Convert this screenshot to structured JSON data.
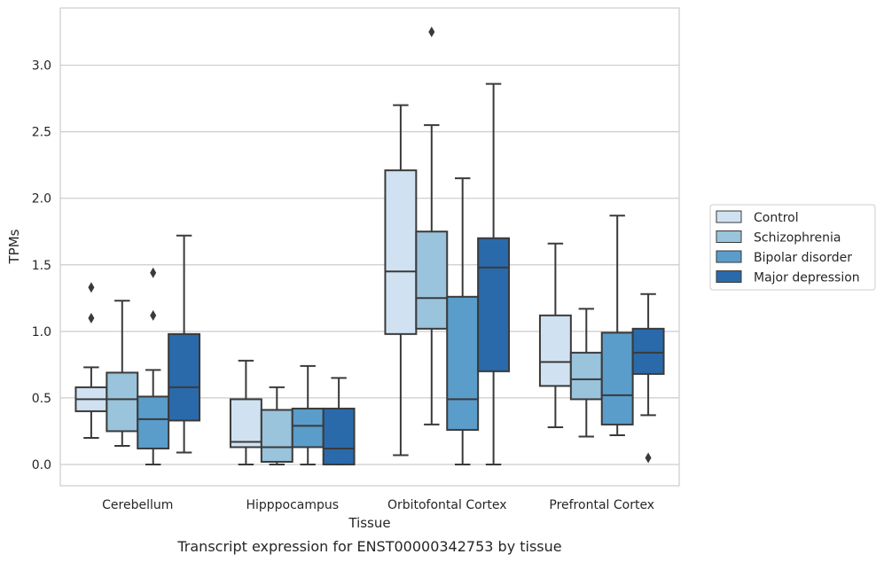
{
  "caption": "Transcript expression for ENST00000342753 by tissue",
  "chart_data": {
    "type": "box",
    "xlabel": "Tissue",
    "ylabel": "TPMs",
    "ylim": [
      -0.16,
      3.43
    ],
    "yticks": [
      0.0,
      0.5,
      1.0,
      1.5,
      2.0,
      2.5,
      3.0
    ],
    "grid": "horizontal",
    "legend_position": "right",
    "categories": [
      "Cerebellum",
      "Hipppocampus",
      "Orbitofontal Cortex",
      "Prefrontal Cortex"
    ],
    "series": [
      {
        "name": "Control",
        "color": "#d0e2f2",
        "boxes": [
          {
            "whislo": 0.2,
            "q1": 0.4,
            "med": 0.49,
            "q3": 0.58,
            "whishi": 0.73,
            "fliers": [
              1.1,
              1.33
            ]
          },
          {
            "whislo": 0.0,
            "q1": 0.13,
            "med": 0.17,
            "q3": 0.49,
            "whishi": 0.78,
            "fliers": []
          },
          {
            "whislo": 0.07,
            "q1": 0.98,
            "med": 1.45,
            "q3": 2.21,
            "whishi": 2.7,
            "fliers": []
          },
          {
            "whislo": 0.28,
            "q1": 0.59,
            "med": 0.77,
            "q3": 1.12,
            "whishi": 1.66,
            "fliers": []
          }
        ]
      },
      {
        "name": "Schizophrenia",
        "color": "#9ac3dc",
        "boxes": [
          {
            "whislo": 0.14,
            "q1": 0.25,
            "med": 0.49,
            "q3": 0.69,
            "whishi": 1.23,
            "fliers": []
          },
          {
            "whislo": 0.0,
            "q1": 0.02,
            "med": 0.13,
            "q3": 0.41,
            "whishi": 0.58,
            "fliers": []
          },
          {
            "whislo": 0.3,
            "q1": 1.02,
            "med": 1.25,
            "q3": 1.75,
            "whishi": 2.55,
            "fliers": [
              3.25
            ]
          },
          {
            "whislo": 0.21,
            "q1": 0.49,
            "med": 0.64,
            "q3": 0.84,
            "whishi": 1.17,
            "fliers": []
          }
        ]
      },
      {
        "name": "Bipolar disorder",
        "color": "#5a9dca",
        "boxes": [
          {
            "whislo": 0.0,
            "q1": 0.12,
            "med": 0.34,
            "q3": 0.51,
            "whishi": 0.71,
            "fliers": [
              1.12,
              1.44
            ]
          },
          {
            "whislo": 0.0,
            "q1": 0.13,
            "med": 0.29,
            "q3": 0.42,
            "whishi": 0.74,
            "fliers": []
          },
          {
            "whislo": 0.0,
            "q1": 0.26,
            "med": 0.49,
            "q3": 1.26,
            "whishi": 2.15,
            "fliers": []
          },
          {
            "whislo": 0.22,
            "q1": 0.3,
            "med": 0.52,
            "q3": 0.99,
            "whishi": 1.87,
            "fliers": []
          }
        ]
      },
      {
        "name": "Major depression",
        "color": "#2a6aab",
        "boxes": [
          {
            "whislo": 0.09,
            "q1": 0.33,
            "med": 0.58,
            "q3": 0.98,
            "whishi": 1.72,
            "fliers": []
          },
          {
            "whislo": 0.0,
            "q1": 0.0,
            "med": 0.12,
            "q3": 0.42,
            "whishi": 0.65,
            "fliers": []
          },
          {
            "whislo": 0.0,
            "q1": 0.7,
            "med": 1.48,
            "q3": 1.7,
            "whishi": 2.86,
            "fliers": []
          },
          {
            "whislo": 0.37,
            "q1": 0.68,
            "med": 0.84,
            "q3": 1.02,
            "whishi": 1.28,
            "fliers": [
              0.05
            ]
          }
        ]
      }
    ]
  }
}
